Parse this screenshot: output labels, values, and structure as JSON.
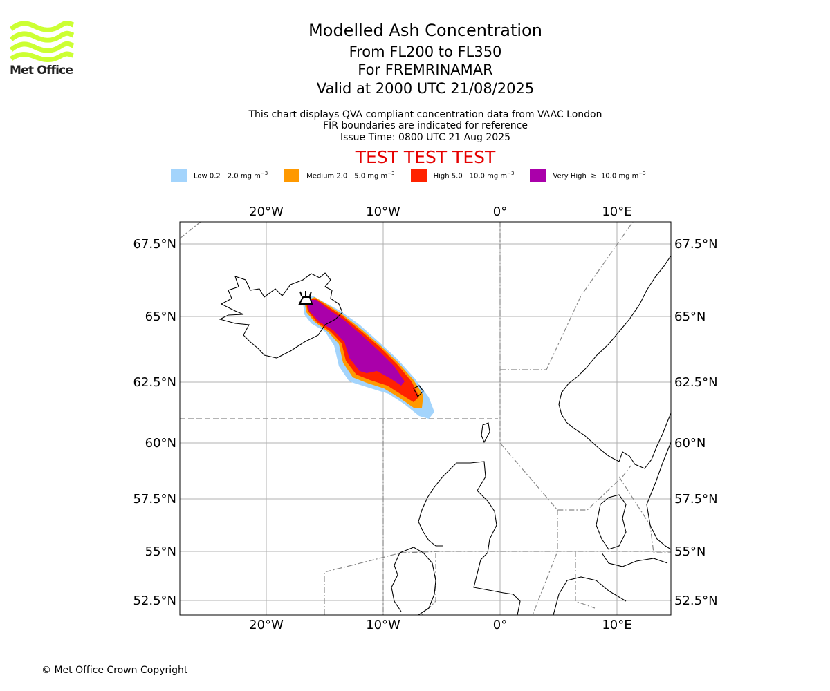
{
  "logo": {
    "text": "Met Office",
    "color": "#ccff33"
  },
  "header": {
    "title": "Modelled Ash Concentration",
    "level_range": "From FL200 to FL350",
    "volcano": "For FREMRINAMAR",
    "valid_time": "Valid at 2000 UTC 21/08/2025",
    "note_1": "This chart displays QVA compliant concentration data from VAAC London",
    "note_2": "FIR boundaries are indicated for reference",
    "issue_time": "Issue Time: 0800 UTC 21 Aug 2025",
    "test_banner": "TEST TEST TEST"
  },
  "legend": [
    {
      "label": "Low 0.2 - 2.0 mg m",
      "sup": "−3",
      "color": "#a3d4fc"
    },
    {
      "label": "Medium 2.0 - 5.0 mg m",
      "sup": "−3",
      "color": "#ff9900"
    },
    {
      "label": "High 5.0 - 10.0 mg m",
      "sup": "−3",
      "color": "#ff2200"
    },
    {
      "label": "Very High  ≥  10.0 mg m",
      "sup": "−3",
      "color": "#aa00aa"
    }
  ],
  "map": {
    "lon_ticks": [
      "20°W",
      "10°W",
      "0°",
      "10°E"
    ],
    "lat_ticks": [
      "67.5°N",
      "65°N",
      "62.5°N",
      "60°N",
      "57.5°N",
      "55°N",
      "52.5°N"
    ],
    "volcano_icon": "volcano-icon",
    "coastline_color": "#000000",
    "gridline_color": "#b0b0b0",
    "fir_line_color": "#888888"
  },
  "footer": "© Met Office Crown Copyright"
}
